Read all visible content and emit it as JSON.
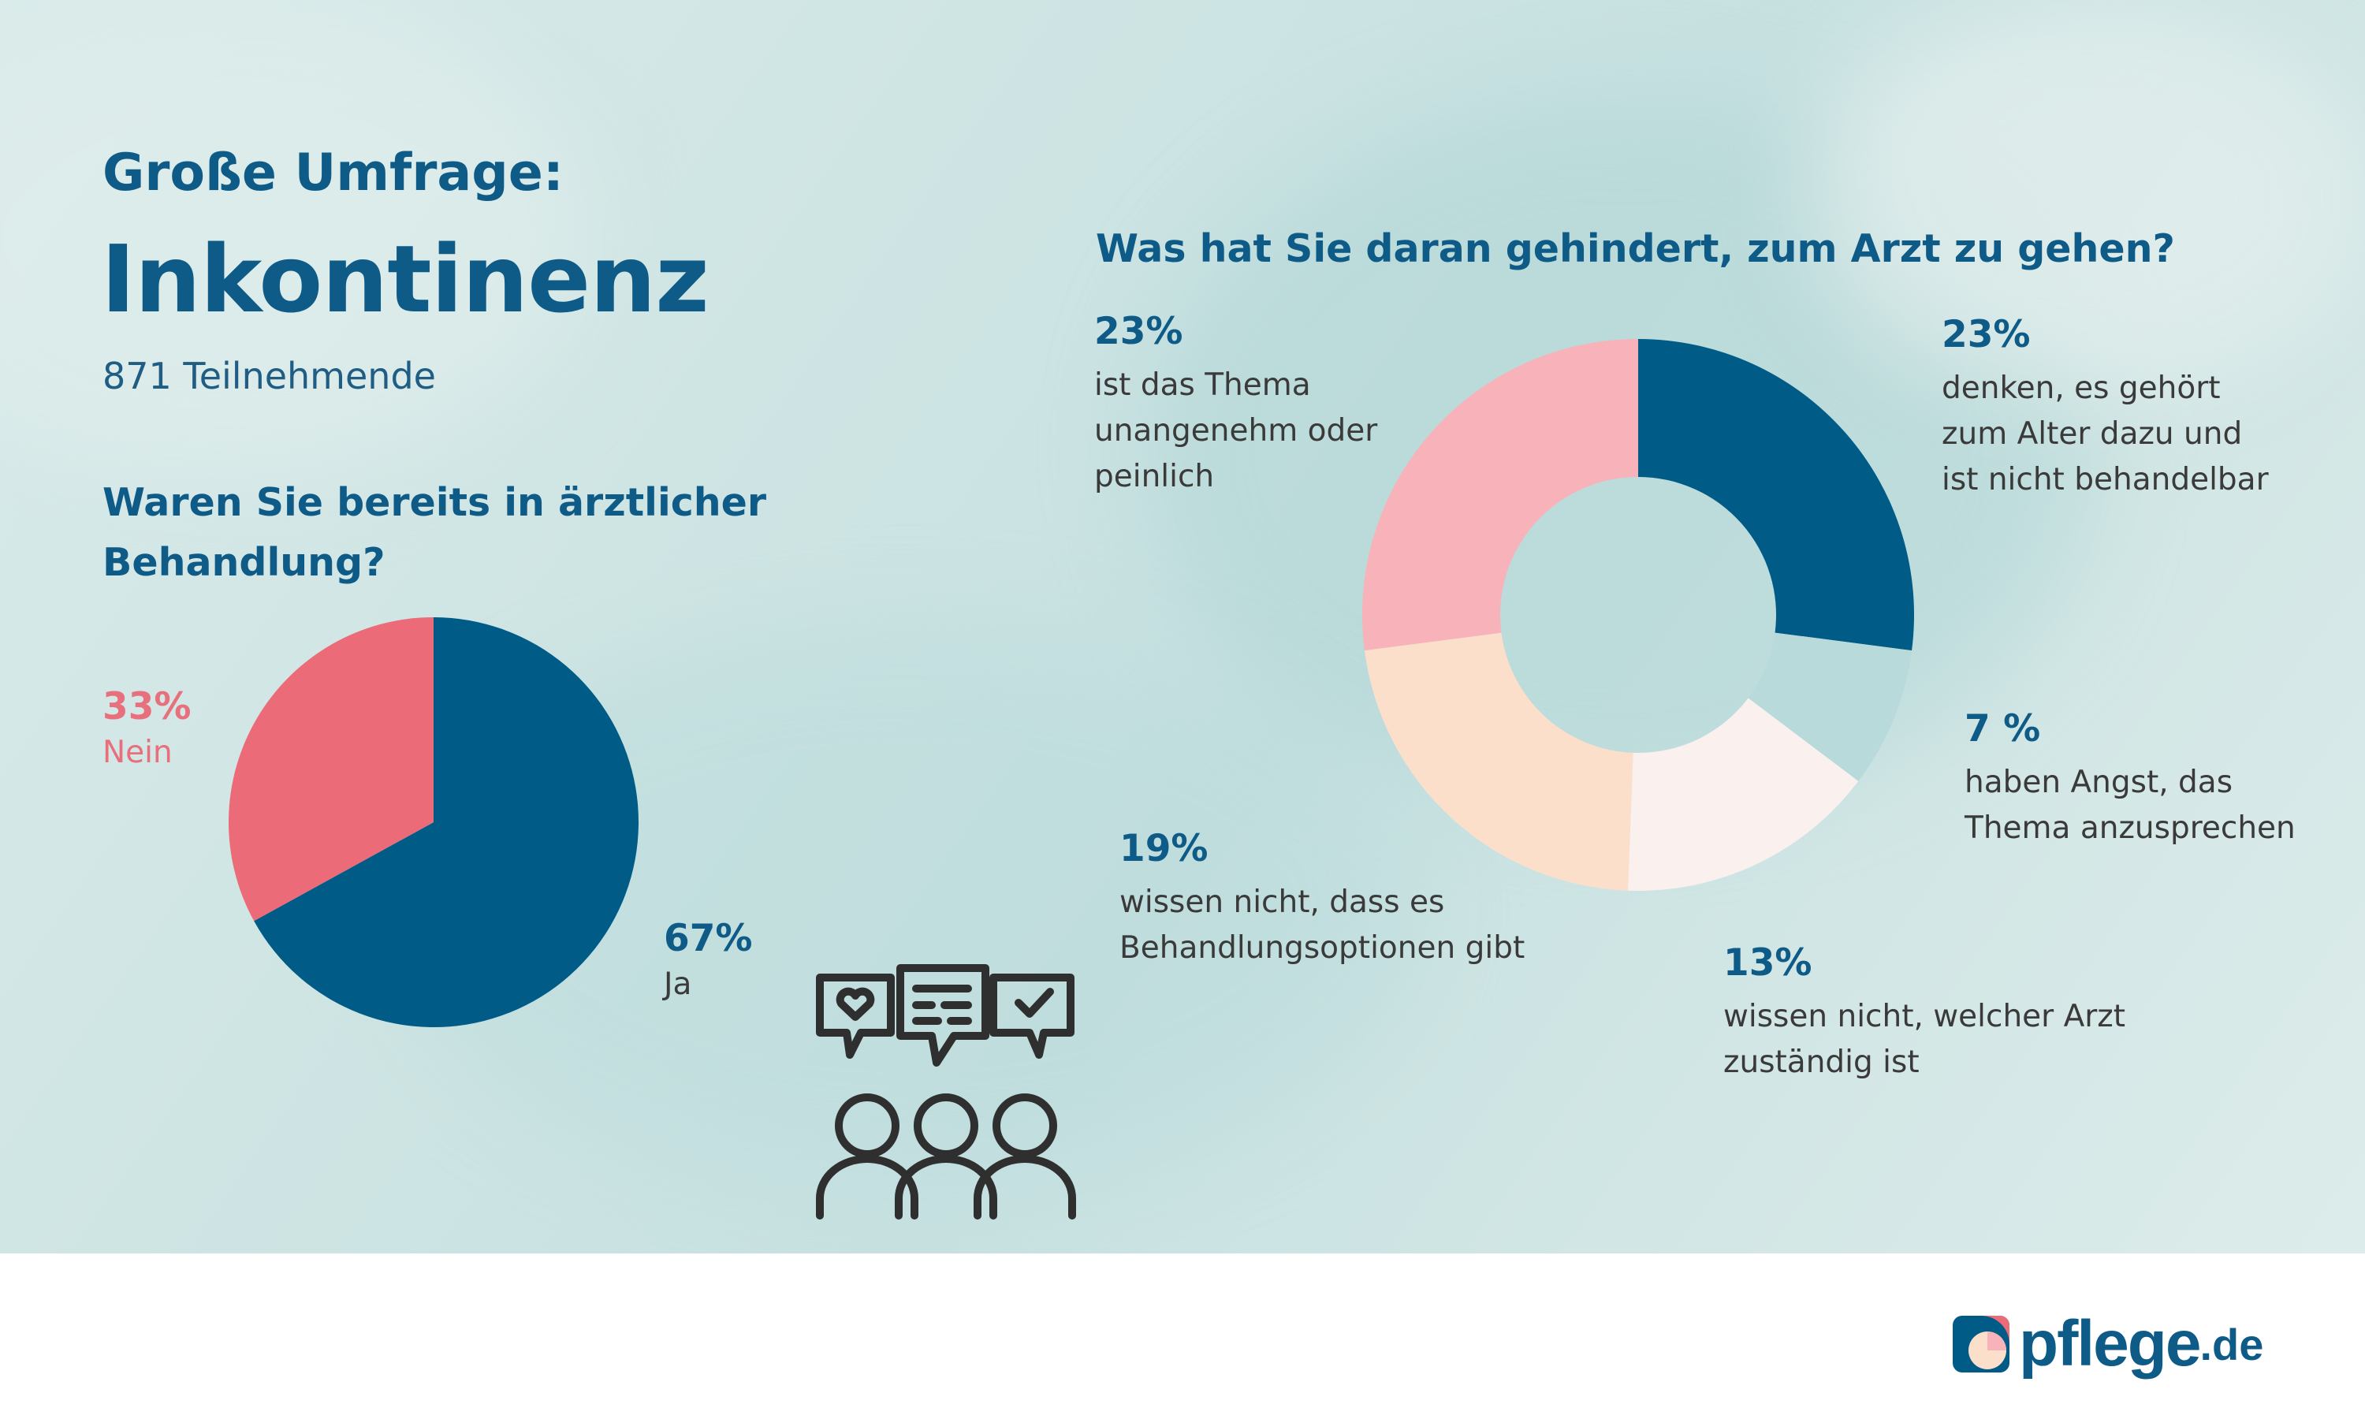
{
  "header": {
    "kicker": "Große Umfrage:",
    "title": "Inkontinenz",
    "participants": "871 Teilnehmende"
  },
  "colors": {
    "navy": "#005b87",
    "coral": "#ec6b78",
    "pink": "#f8b3ba",
    "peach": "#fcdfcb",
    "cream": "#faf1ee",
    "mint": "#b8dada"
  },
  "chart_data": [
    {
      "type": "pie",
      "title": "Waren Sie bereits in ärztlicher Behandlung?",
      "slices": [
        {
          "pct_label": "67%",
          "label": "Ja",
          "value": 67,
          "color": "#005b87"
        },
        {
          "pct_label": "33%",
          "label": "Nein",
          "value": 33,
          "color": "#ec6b78"
        }
      ]
    },
    {
      "type": "pie",
      "donut": true,
      "title": "Was hat Sie daran gehindert, zum Arzt zu gehen?",
      "slices": [
        {
          "pct_label": "23%",
          "label": "denken, es gehört zum Alter dazu und ist nicht behandelbar",
          "value": 23,
          "color": "#005b87"
        },
        {
          "pct_label": "7 %",
          "label": "haben Angst, das Thema anzusprechen",
          "value": 7,
          "color": "#b8dada"
        },
        {
          "pct_label": "13%",
          "label": "wissen nicht, welcher Arzt zuständig ist",
          "value": 13,
          "color": "#faf1ee"
        },
        {
          "pct_label": "19%",
          "label": "wissen nicht, dass es Behandlungsoptionen gibt",
          "value": 19,
          "color": "#fcdfcb"
        },
        {
          "pct_label": "23%",
          "label": "ist das Thema unangenehm oder peinlich",
          "value": 23,
          "color": "#f8b3ba"
        }
      ]
    }
  ],
  "icons": {
    "people": "people-feedback-icon"
  },
  "logo": {
    "name": "pflege",
    "tld": ".de"
  }
}
